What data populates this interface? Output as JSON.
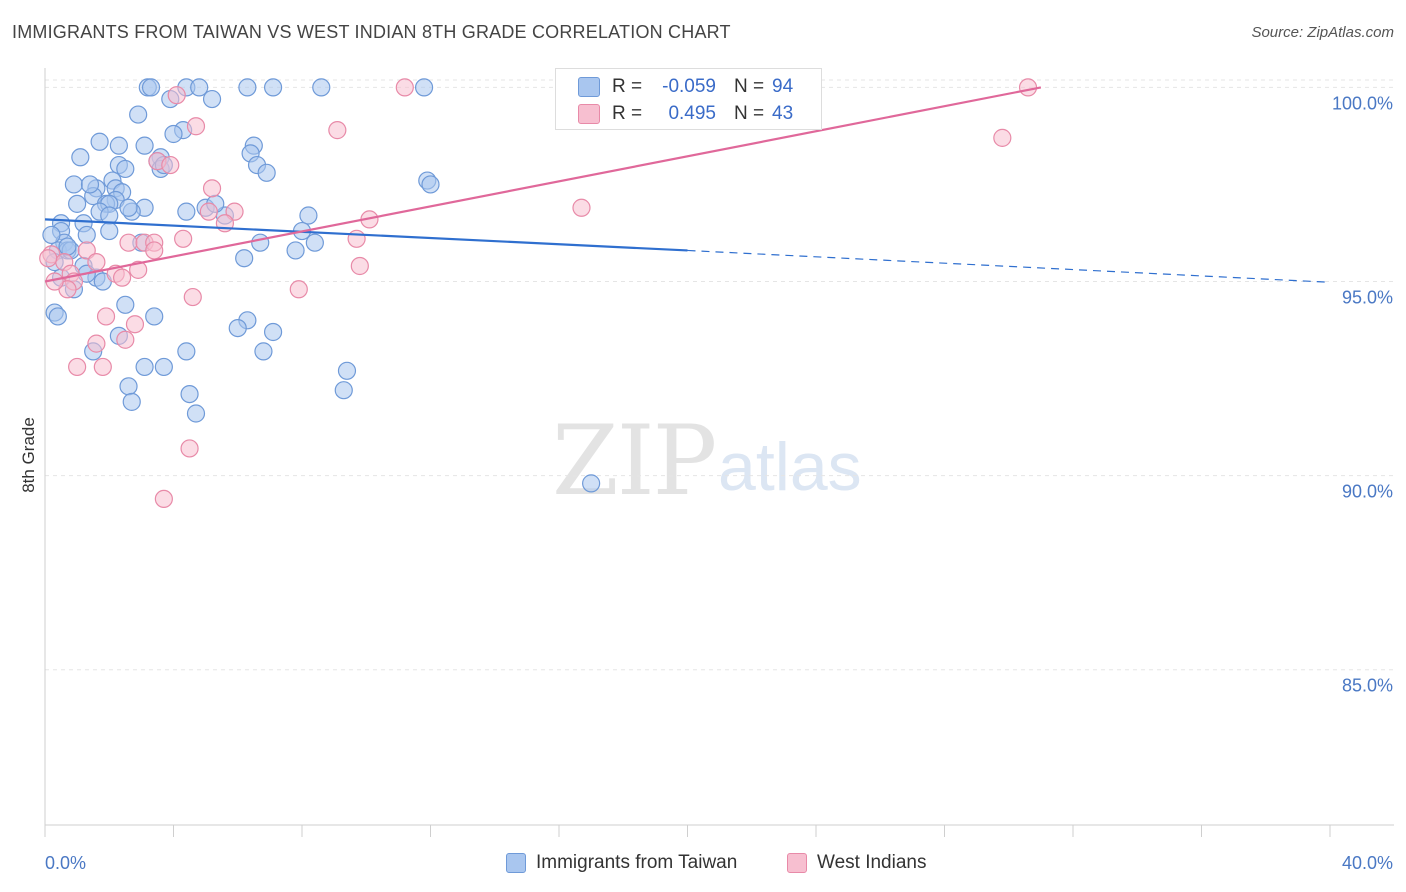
{
  "title": "IMMIGRANTS FROM TAIWAN VS WEST INDIAN 8TH GRADE CORRELATION CHART",
  "source": "Source: ZipAtlas.com",
  "watermark": {
    "zip": "ZIP",
    "atlas": "atlas"
  },
  "stats": [
    {
      "r_label": "R =",
      "r_value": "-0.059",
      "n_label": "N =",
      "n_value": "94",
      "color": "#a9c6ef",
      "border": "#6f9ad8"
    },
    {
      "r_label": "R =",
      "r_value": "0.495",
      "n_label": "N =",
      "n_value": "43",
      "color": "#f7bfd0",
      "border": "#e88aa8"
    }
  ],
  "legend": [
    {
      "label": "Immigrants from Taiwan",
      "color": "#a9c6ef",
      "border": "#6f9ad8"
    },
    {
      "label": "West Indians",
      "color": "#f7bfd0",
      "border": "#e88aa8"
    }
  ],
  "chart_data": {
    "type": "scatter",
    "title": "IMMIGRANTS FROM TAIWAN VS WEST INDIAN 8TH GRADE CORRELATION CHART",
    "xlabel": "",
    "ylabel": "8th Grade",
    "xlim": [
      0,
      40
    ],
    "ylim": [
      81.0,
      100.5
    ],
    "x_tick_labels": [
      "0.0%",
      "40.0%"
    ],
    "y_ticks": [
      85,
      90,
      95,
      100
    ],
    "y_tick_labels": [
      "85.0%",
      "90.0%",
      "95.0%",
      "100.0%"
    ],
    "grid": true,
    "series": [
      {
        "name": "Immigrants from Taiwan",
        "color": "#6f9ad8",
        "fill": "#a9c6ef",
        "trend": {
          "x": [
            0,
            20
          ],
          "y": [
            96.6,
            95.8
          ],
          "extend_x": 40,
          "extend_y": 94.98
        },
        "points": [
          [
            3.2,
            100
          ],
          [
            3.3,
            100
          ],
          [
            4.4,
            100
          ],
          [
            4.8,
            100
          ],
          [
            6.3,
            100
          ],
          [
            7.1,
            100
          ],
          [
            8.6,
            100
          ],
          [
            11.8,
            100
          ],
          [
            3.9,
            99.7
          ],
          [
            5.2,
            99.7
          ],
          [
            2.9,
            99.3
          ],
          [
            4.3,
            98.9
          ],
          [
            4.0,
            98.8
          ],
          [
            1.7,
            98.6
          ],
          [
            2.3,
            98.5
          ],
          [
            3.1,
            98.5
          ],
          [
            6.5,
            98.5
          ],
          [
            6.4,
            98.3
          ],
          [
            1.1,
            98.2
          ],
          [
            3.6,
            98.2
          ],
          [
            3.5,
            98.1
          ],
          [
            2.3,
            98.0
          ],
          [
            6.6,
            98.0
          ],
          [
            2.5,
            97.9
          ],
          [
            3.6,
            97.9
          ],
          [
            6.9,
            97.8
          ],
          [
            2.1,
            97.6
          ],
          [
            11.9,
            97.6
          ],
          [
            12.0,
            97.5
          ],
          [
            0.9,
            97.5
          ],
          [
            1.6,
            97.4
          ],
          [
            2.2,
            97.4
          ],
          [
            2.4,
            97.3
          ],
          [
            1.5,
            97.2
          ],
          [
            2.2,
            97.1
          ],
          [
            1.0,
            97.0
          ],
          [
            1.9,
            97.0
          ],
          [
            2.0,
            97.0
          ],
          [
            3.1,
            96.9
          ],
          [
            5.0,
            96.9
          ],
          [
            1.7,
            96.8
          ],
          [
            2.7,
            96.8
          ],
          [
            4.4,
            96.8
          ],
          [
            5.6,
            96.7
          ],
          [
            8.2,
            96.7
          ],
          [
            2.0,
            96.7
          ],
          [
            1.2,
            96.5
          ],
          [
            0.5,
            96.5
          ],
          [
            0.5,
            96.3
          ],
          [
            1.3,
            96.2
          ],
          [
            2.0,
            96.3
          ],
          [
            8.0,
            96.3
          ],
          [
            0.6,
            96.0
          ],
          [
            3.0,
            96.0
          ],
          [
            6.7,
            96.0
          ],
          [
            8.4,
            96.0
          ],
          [
            0.4,
            95.8
          ],
          [
            7.8,
            95.8
          ],
          [
            0.7,
            95.8
          ],
          [
            0.8,
            95.8
          ],
          [
            1.2,
            95.4
          ],
          [
            1.6,
            95.1
          ],
          [
            0.5,
            95.1
          ],
          [
            1.3,
            95.2
          ],
          [
            0.9,
            94.8
          ],
          [
            6.2,
            95.6
          ],
          [
            2.5,
            94.4
          ],
          [
            0.3,
            94.2
          ],
          [
            3.4,
            94.1
          ],
          [
            0.4,
            94.1
          ],
          [
            6.3,
            94.0
          ],
          [
            6.0,
            93.8
          ],
          [
            7.1,
            93.7
          ],
          [
            2.3,
            93.6
          ],
          [
            4.4,
            93.2
          ],
          [
            6.8,
            93.2
          ],
          [
            1.5,
            93.2
          ],
          [
            3.1,
            92.8
          ],
          [
            3.7,
            92.8
          ],
          [
            9.4,
            92.7
          ],
          [
            2.6,
            92.3
          ],
          [
            9.3,
            92.2
          ],
          [
            2.7,
            91.9
          ],
          [
            4.5,
            92.1
          ],
          [
            4.7,
            91.6
          ],
          [
            17.0,
            89.8
          ],
          [
            0.2,
            96.2
          ],
          [
            0.7,
            95.9
          ],
          [
            1.8,
            95.0
          ],
          [
            2.6,
            96.9
          ],
          [
            5.3,
            97.0
          ],
          [
            3.7,
            98.0
          ],
          [
            1.4,
            97.5
          ],
          [
            0.3,
            95.5
          ]
        ]
      },
      {
        "name": "West Indians",
        "color": "#e88aa8",
        "fill": "#f7bfd0",
        "trend": {
          "x": [
            0,
            31
          ],
          "y": [
            95.0,
            100.0
          ]
        },
        "points": [
          [
            11.2,
            100
          ],
          [
            30.6,
            100
          ],
          [
            4.1,
            99.8
          ],
          [
            4.7,
            99.0
          ],
          [
            9.1,
            98.9
          ],
          [
            29.8,
            98.7
          ],
          [
            3.5,
            98.1
          ],
          [
            3.9,
            98.0
          ],
          [
            5.2,
            97.4
          ],
          [
            16.7,
            96.9
          ],
          [
            5.1,
            96.8
          ],
          [
            5.9,
            96.8
          ],
          [
            10.1,
            96.6
          ],
          [
            5.6,
            96.5
          ],
          [
            9.7,
            96.1
          ],
          [
            4.3,
            96.1
          ],
          [
            2.6,
            96.0
          ],
          [
            3.1,
            96.0
          ],
          [
            3.4,
            96.0
          ],
          [
            1.3,
            95.8
          ],
          [
            3.4,
            95.8
          ],
          [
            0.2,
            95.7
          ],
          [
            0.6,
            95.5
          ],
          [
            9.8,
            95.4
          ],
          [
            2.9,
            95.3
          ],
          [
            0.8,
            95.2
          ],
          [
            2.2,
            95.2
          ],
          [
            2.4,
            95.1
          ],
          [
            0.9,
            95.0
          ],
          [
            0.7,
            94.8
          ],
          [
            7.9,
            94.8
          ],
          [
            4.6,
            94.6
          ],
          [
            0.3,
            95.0
          ],
          [
            1.9,
            94.1
          ],
          [
            2.8,
            93.9
          ],
          [
            2.5,
            93.5
          ],
          [
            1.6,
            93.4
          ],
          [
            1.0,
            92.8
          ],
          [
            1.8,
            92.8
          ],
          [
            4.5,
            90.7
          ],
          [
            3.7,
            89.4
          ],
          [
            0.1,
            95.6
          ],
          [
            1.6,
            95.5
          ]
        ]
      }
    ]
  }
}
